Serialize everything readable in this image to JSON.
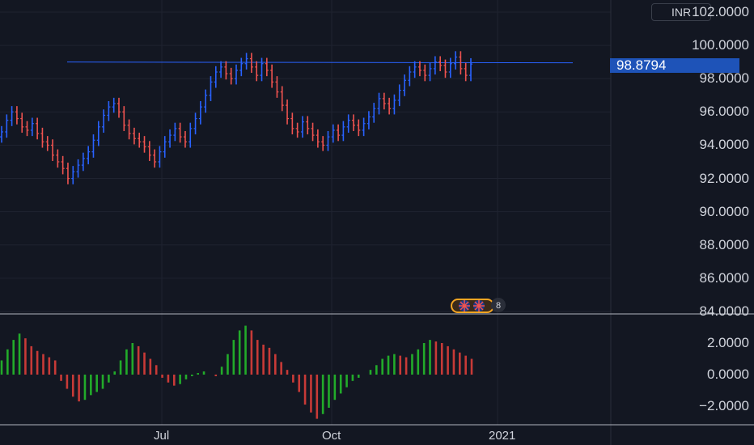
{
  "currency": "INR",
  "last_price": "98.8794",
  "colors": {
    "background": "#131722",
    "up": "#2962ff",
    "down": "#ef5350",
    "hist_up": "#26a69a",
    "hist_down": "#ef5350",
    "trendline": "#2962ff",
    "last_price_bg": "#1e53b8"
  },
  "event_badge": {
    "count": "8",
    "icon": "uk-flag-icon"
  },
  "chart_data": [
    {
      "type": "bar",
      "subtype": "ohlc",
      "yaxis_labels": [
        "102.0000",
        "100.0000",
        "98.0000",
        "96.0000",
        "94.0000",
        "92.0000",
        "90.0000",
        "88.0000",
        "86.0000",
        "84.0000"
      ],
      "ylim": [
        84,
        102
      ],
      "xaxis_labels": [
        "Jul",
        "Oct",
        "2021"
      ],
      "horizontal_line": 99.0,
      "closes": [
        94.8,
        95.5,
        96.0,
        95.6,
        95.1,
        94.9,
        95.3,
        94.7,
        94.2,
        94.0,
        93.4,
        93.0,
        92.6,
        92.0,
        92.4,
        92.8,
        93.2,
        93.6,
        94.3,
        95.1,
        95.8,
        96.3,
        96.5,
        96.0,
        95.2,
        94.7,
        94.4,
        94.2,
        93.9,
        93.4,
        93.0,
        93.6,
        94.2,
        94.6,
        95.0,
        94.5,
        94.2,
        95.0,
        95.6,
        96.3,
        97.0,
        97.8,
        98.4,
        98.7,
        98.3,
        98.0,
        98.5,
        98.9,
        99.2,
        98.7,
        98.2,
        98.9,
        98.5,
        97.8,
        97.2,
        96.4,
        95.6,
        95.0,
        94.8,
        95.4,
        95.0,
        94.6,
        94.2,
        94.0,
        94.5,
        94.9,
        94.6,
        95.1,
        95.5,
        95.2,
        94.9,
        95.3,
        95.7,
        96.2,
        96.8,
        96.5,
        96.2,
        96.7,
        97.3,
        97.9,
        98.4,
        98.7,
        98.5,
        98.2,
        98.6,
        99.0,
        98.8,
        98.4,
        98.9,
        99.3,
        98.6,
        98.2,
        98.88
      ]
    },
    {
      "type": "bar",
      "subtype": "histogram",
      "yaxis_labels": [
        "2.0000",
        "0.0000",
        "−2.0000"
      ],
      "ylim": [
        -3.1,
        3.5
      ],
      "values": [
        0.9,
        1.6,
        2.2,
        2.6,
        2.3,
        1.8,
        1.5,
        1.3,
        1.1,
        0.9,
        -0.4,
        -0.9,
        -1.4,
        -1.7,
        -1.6,
        -1.3,
        -1.1,
        -0.9,
        -0.5,
        0.2,
        0.9,
        1.6,
        2.0,
        1.8,
        1.4,
        1.0,
        0.6,
        -0.2,
        -0.5,
        -0.7,
        -0.6,
        -0.3,
        -0.1,
        0.1,
        0.2,
        0.0,
        -0.1,
        0.5,
        1.3,
        2.2,
        2.8,
        3.1,
        2.8,
        2.2,
        1.9,
        1.7,
        1.3,
        0.8,
        0.3,
        -0.5,
        -1.1,
        -1.9,
        -2.4,
        -2.8,
        -2.5,
        -2.1,
        -1.6,
        -1.2,
        -0.8,
        -0.4,
        -0.2,
        0.0,
        0.3,
        0.6,
        1.0,
        1.2,
        1.3,
        1.2,
        1.1,
        1.3,
        1.6,
        2.0,
        2.2,
        2.1,
        2.0,
        1.8,
        1.6,
        1.4,
        1.2,
        1.0
      ]
    }
  ]
}
